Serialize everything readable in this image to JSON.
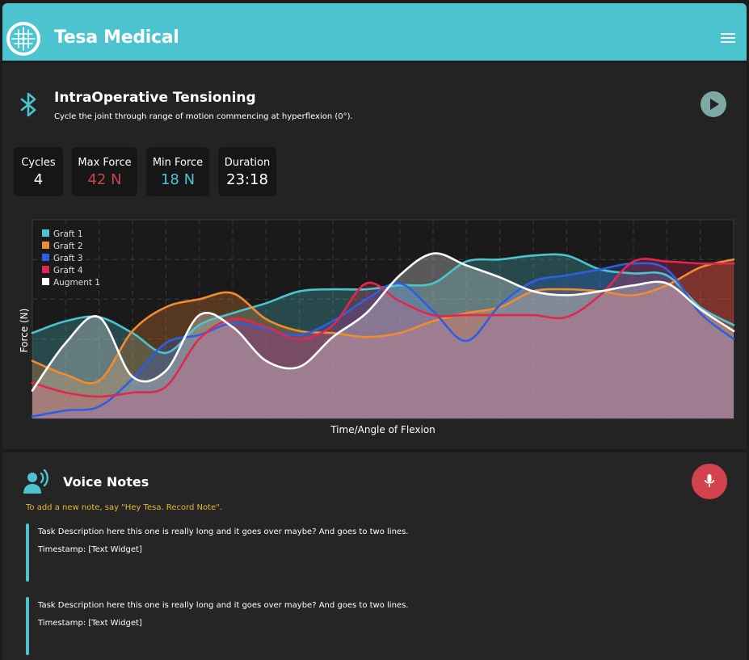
{
  "header": {
    "app_name": "Tesa Medical",
    "brand_color": "#4cc4d0"
  },
  "procedure": {
    "title": "IntraOperative Tensioning",
    "subtitle": "Cycle the joint through range of motion commencing at hyperflexion (0°)."
  },
  "stats": [
    {
      "label": "Cycles",
      "value": "4",
      "color": "#ffffff"
    },
    {
      "label": "Max Force",
      "value": "42 N",
      "color": "#c9444f"
    },
    {
      "label": "Min Force",
      "value": "18 N",
      "color": "#4cc4d0"
    },
    {
      "label": "Duration",
      "value": "23:18",
      "color": "#ffffff"
    }
  ],
  "chart_data": {
    "type": "area",
    "xlabel": "Time/Angle of Flexion",
    "ylabel": "Force (N)",
    "grid": true,
    "legend_position": "top-left",
    "x": [
      0,
      1,
      2,
      3,
      4,
      5,
      6,
      7,
      8,
      9,
      10,
      11,
      12,
      13,
      14,
      15,
      16,
      17,
      18,
      19,
      20,
      21
    ],
    "ylim": [
      0,
      100
    ],
    "series": [
      {
        "name": "Graft 1",
        "color": "#4cc4d0",
        "values": [
          43,
          49,
          51,
          43,
          33,
          47,
          53,
          58,
          64,
          65,
          65,
          67,
          68,
          79,
          80,
          82,
          82,
          75,
          73,
          72,
          56,
          47
        ]
      },
      {
        "name": "Graft 2",
        "color": "#f28a2e",
        "values": [
          29,
          22,
          19,
          44,
          56,
          60,
          63,
          50,
          44,
          43,
          41,
          43,
          49,
          53,
          56,
          64,
          65,
          64,
          62,
          67,
          76,
          80
        ]
      },
      {
        "name": "Graft 3",
        "color": "#2e5fe0",
        "values": [
          1,
          4,
          6,
          20,
          38,
          42,
          48,
          45,
          42,
          49,
          60,
          68,
          54,
          39,
          57,
          69,
          72,
          75,
          78,
          75,
          53,
          40
        ]
      },
      {
        "name": "Graft 4",
        "color": "#e0284f",
        "values": [
          18,
          13,
          11,
          13,
          16,
          40,
          50,
          46,
          40,
          47,
          68,
          59,
          52,
          52,
          52,
          52,
          51,
          62,
          79,
          79,
          78,
          78
        ]
      },
      {
        "name": "Augment 1",
        "color": "#ffffff",
        "values": [
          14,
          38,
          51,
          21,
          24,
          52,
          46,
          29,
          26,
          41,
          53,
          72,
          83,
          77,
          71,
          64,
          62,
          64,
          67,
          68,
          55,
          44
        ]
      }
    ]
  },
  "voice_notes": {
    "title": "Voice Notes",
    "hint": "To add a new note, say \"Hey Tesa. Record Note\".",
    "mic_color": "#d2434f",
    "notes": [
      {
        "description": "Task Description here this one is really long and it goes over maybe? And goes to two lines.",
        "timestamp": "Timestamp:  [Text Widget]"
      },
      {
        "description": "Task Description here this one is really long and it goes over maybe? And goes to two lines.",
        "timestamp": "Timestamp:  [Text Widget]"
      }
    ]
  }
}
